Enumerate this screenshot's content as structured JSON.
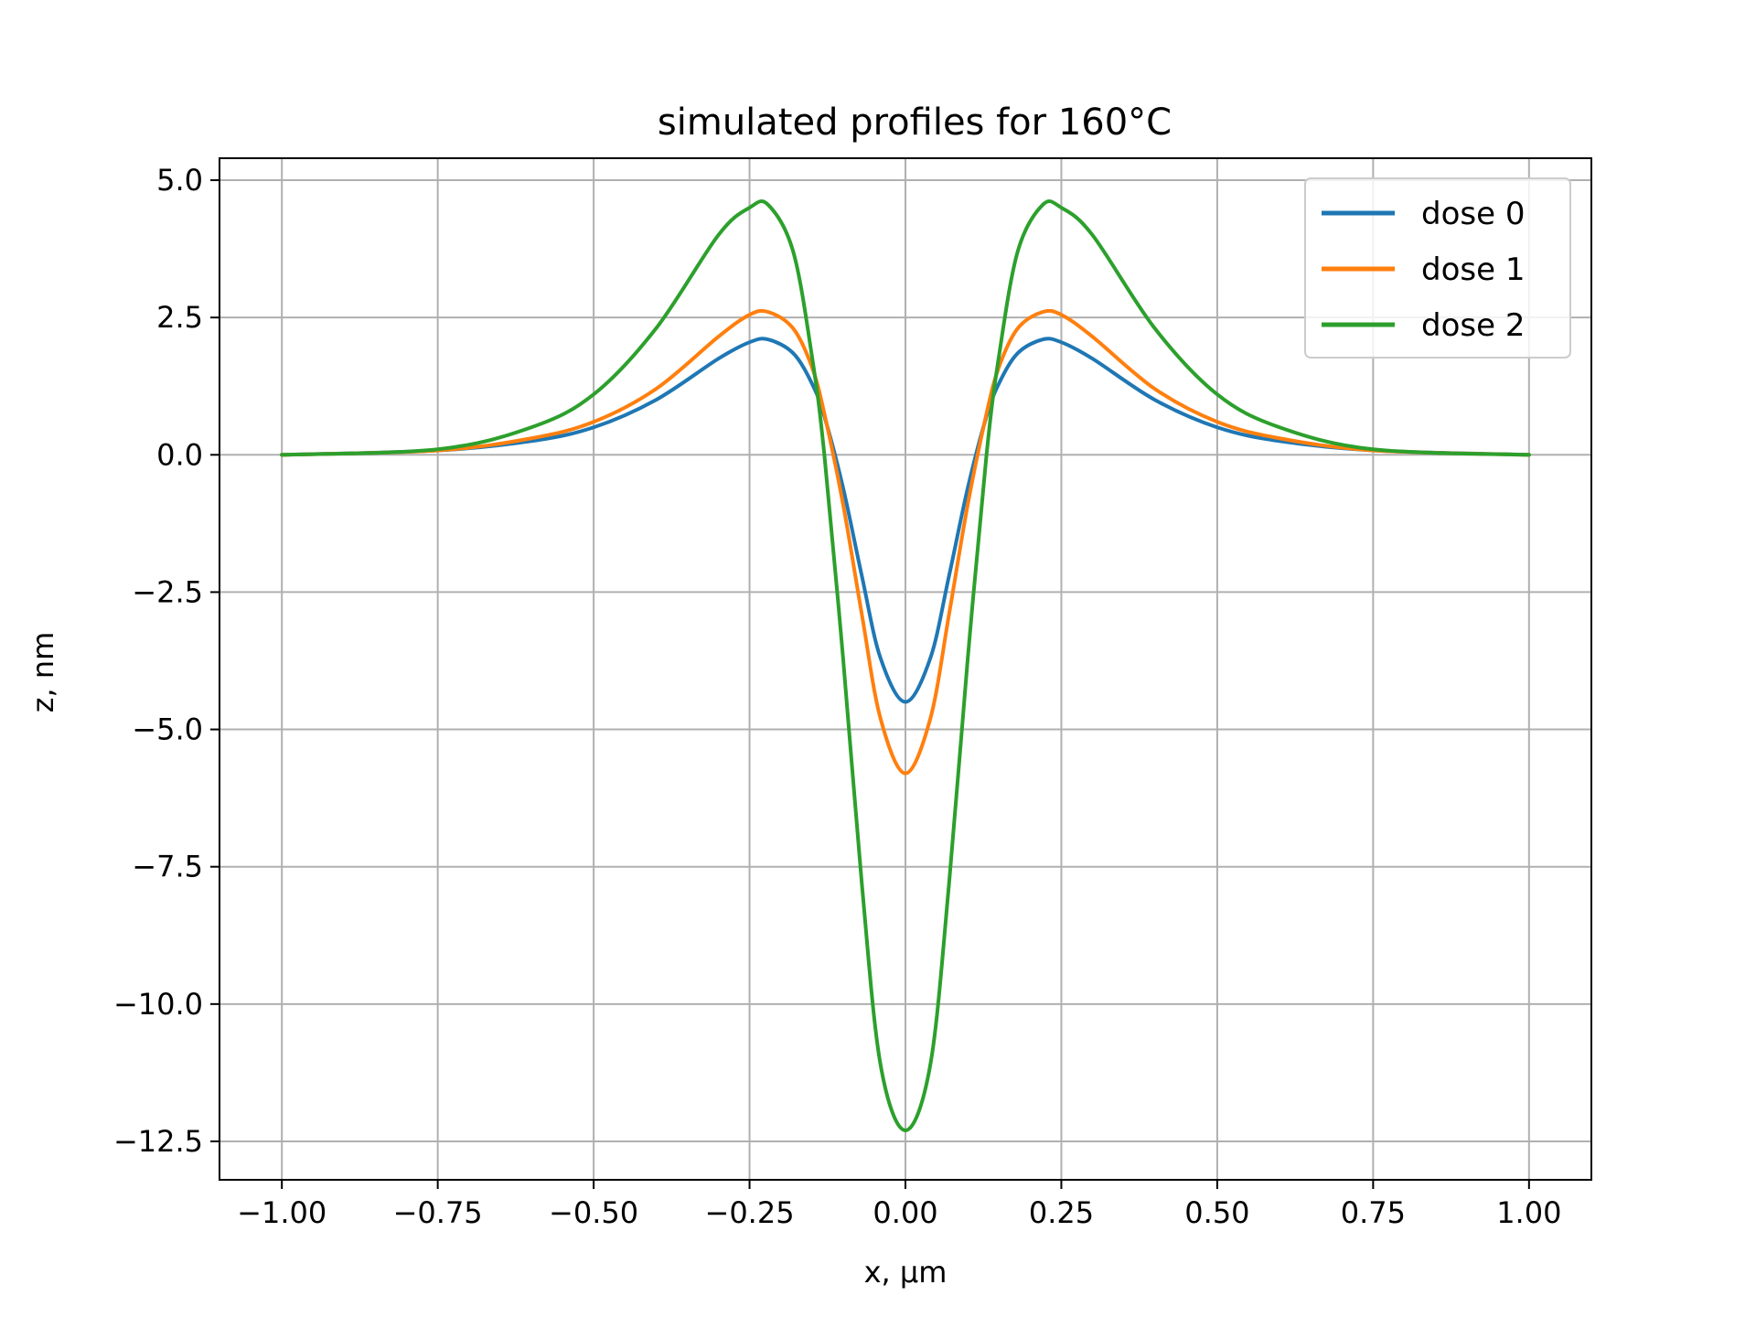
{
  "chart_data": {
    "type": "line",
    "title": "simulated profiles for 160°C",
    "xlabel": "x, μm",
    "ylabel": "z, nm",
    "xlim": [
      -1.1,
      1.1
    ],
    "ylim": [
      -13.2,
      5.4
    ],
    "xticks": [
      -1.0,
      -0.75,
      -0.5,
      -0.25,
      0.0,
      0.25,
      0.5,
      0.75,
      1.0
    ],
    "xtick_labels": [
      "−1.00",
      "−0.75",
      "−0.50",
      "−0.25",
      "0.00",
      "0.25",
      "0.50",
      "0.75",
      "1.00"
    ],
    "yticks": [
      5.0,
      2.5,
      0.0,
      -2.5,
      -5.0,
      -7.5,
      -10.0,
      -12.5
    ],
    "ytick_labels": [
      "5.0",
      "2.5",
      "0.0",
      "−2.5",
      "−5.0",
      "−7.5",
      "−10.0",
      "−12.5"
    ],
    "grid": true,
    "legend_position": "top-right",
    "series": [
      {
        "name": "dose 0",
        "color": "#1f77b4",
        "x": [
          -1.0,
          -0.75,
          -0.6,
          -0.5,
          -0.4,
          -0.3,
          -0.25,
          -0.22,
          -0.18,
          -0.15,
          -0.13,
          -0.1,
          -0.07,
          -0.04,
          0.0,
          0.04,
          0.07,
          0.1,
          0.13,
          0.15,
          0.18,
          0.22,
          0.25,
          0.3,
          0.4,
          0.5,
          0.6,
          0.75,
          1.0
        ],
        "y": [
          0.0,
          0.08,
          0.25,
          0.5,
          1.0,
          1.75,
          2.05,
          2.1,
          1.85,
          1.3,
          0.7,
          -0.6,
          -2.2,
          -3.7,
          -4.5,
          -3.7,
          -2.2,
          -0.6,
          0.7,
          1.3,
          1.85,
          2.1,
          2.05,
          1.75,
          1.0,
          0.5,
          0.25,
          0.08,
          0.0
        ]
      },
      {
        "name": "dose 1",
        "color": "#ff7f0e",
        "x": [
          -1.0,
          -0.75,
          -0.6,
          -0.5,
          -0.4,
          -0.3,
          -0.25,
          -0.22,
          -0.18,
          -0.15,
          -0.13,
          -0.1,
          -0.07,
          -0.04,
          0.0,
          0.04,
          0.07,
          0.1,
          0.13,
          0.15,
          0.18,
          0.22,
          0.25,
          0.3,
          0.4,
          0.5,
          0.6,
          0.75,
          1.0
        ],
        "y": [
          0.0,
          0.08,
          0.3,
          0.6,
          1.2,
          2.15,
          2.55,
          2.6,
          2.3,
          1.6,
          0.75,
          -0.9,
          -2.9,
          -4.8,
          -5.8,
          -4.8,
          -2.9,
          -0.9,
          0.75,
          1.6,
          2.3,
          2.6,
          2.55,
          2.15,
          1.2,
          0.6,
          0.3,
          0.08,
          0.0
        ]
      },
      {
        "name": "dose 2",
        "color": "#2ca02c",
        "x": [
          -1.0,
          -0.75,
          -0.6,
          -0.5,
          -0.4,
          -0.3,
          -0.25,
          -0.22,
          -0.18,
          -0.15,
          -0.13,
          -0.1,
          -0.07,
          -0.04,
          0.0,
          0.04,
          0.07,
          0.1,
          0.13,
          0.15,
          0.18,
          0.22,
          0.25,
          0.3,
          0.4,
          0.5,
          0.6,
          0.75,
          1.0
        ],
        "y": [
          0.0,
          0.1,
          0.5,
          1.1,
          2.3,
          4.0,
          4.5,
          4.55,
          3.7,
          1.8,
          0.0,
          -3.7,
          -7.8,
          -11.1,
          -12.3,
          -11.1,
          -7.8,
          -3.7,
          0.0,
          1.8,
          3.7,
          4.55,
          4.5,
          4.0,
          2.3,
          1.1,
          0.5,
          0.1,
          0.0
        ]
      }
    ]
  }
}
